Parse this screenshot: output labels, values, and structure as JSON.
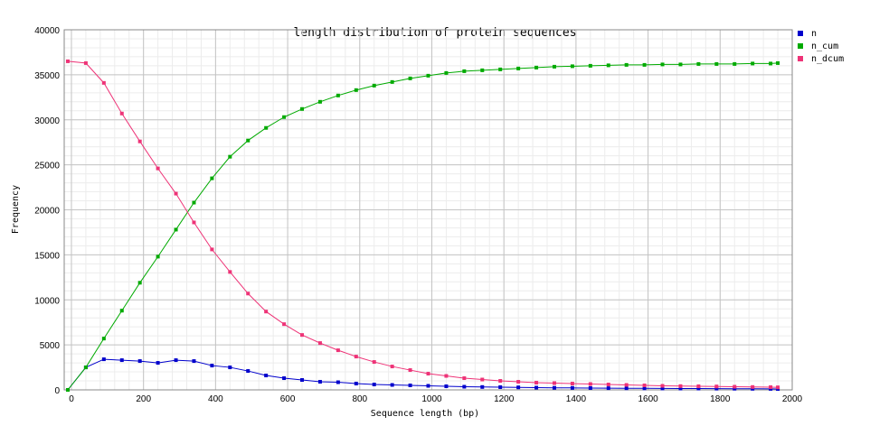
{
  "chart_data": {
    "type": "line",
    "title": "length distribution of protein sequences",
    "xlabel": "Sequence length (bp)",
    "ylabel": "Frequency",
    "xlim": [
      -20,
      2000
    ],
    "ylim": [
      0,
      40000
    ],
    "x_ticks": [
      0,
      200,
      400,
      600,
      800,
      1000,
      1200,
      1400,
      1600,
      1800,
      2000
    ],
    "y_ticks": [
      0,
      5000,
      10000,
      15000,
      20000,
      25000,
      30000,
      35000,
      40000
    ],
    "grid": true,
    "legend_position": "top-right",
    "x": [
      -10,
      40,
      90,
      140,
      190,
      240,
      290,
      340,
      390,
      440,
      490,
      540,
      590,
      640,
      690,
      740,
      790,
      840,
      890,
      940,
      990,
      1040,
      1090,
      1140,
      1190,
      1240,
      1290,
      1340,
      1390,
      1440,
      1490,
      1540,
      1590,
      1640,
      1690,
      1740,
      1790,
      1840,
      1890,
      1940,
      1960
    ],
    "series": [
      {
        "name": "n",
        "color": "#0000cc",
        "values": [
          0,
          2500,
          3400,
          3300,
          3200,
          3000,
          3300,
          3200,
          2700,
          2500,
          2100,
          1600,
          1300,
          1100,
          900,
          850,
          700,
          600,
          550,
          500,
          450,
          400,
          350,
          320,
          300,
          280,
          250,
          230,
          220,
          200,
          190,
          180,
          170,
          160,
          150,
          150,
          140,
          130,
          120,
          110,
          100
        ]
      },
      {
        "name": "n_cum",
        "color": "#00aa00",
        "values": [
          0,
          2500,
          5700,
          8800,
          11900,
          14800,
          17800,
          20800,
          23500,
          25900,
          27700,
          29100,
          30300,
          31200,
          32000,
          32700,
          33300,
          33800,
          34200,
          34600,
          34900,
          35200,
          35400,
          35500,
          35600,
          35700,
          35800,
          35900,
          35950,
          36000,
          36050,
          36100,
          36100,
          36150,
          36150,
          36200,
          36200,
          36200,
          36250,
          36250,
          36300
        ]
      },
      {
        "name": "n_dcum",
        "color": "#ee3377",
        "values": [
          36500,
          36300,
          34100,
          30700,
          27600,
          24600,
          21800,
          18600,
          15600,
          13100,
          10700,
          8700,
          7300,
          6100,
          5200,
          4400,
          3700,
          3100,
          2600,
          2200,
          1800,
          1550,
          1300,
          1150,
          1000,
          900,
          800,
          750,
          700,
          650,
          600,
          550,
          500,
          450,
          420,
          400,
          380,
          350,
          320,
          300,
          280
        ]
      }
    ]
  }
}
